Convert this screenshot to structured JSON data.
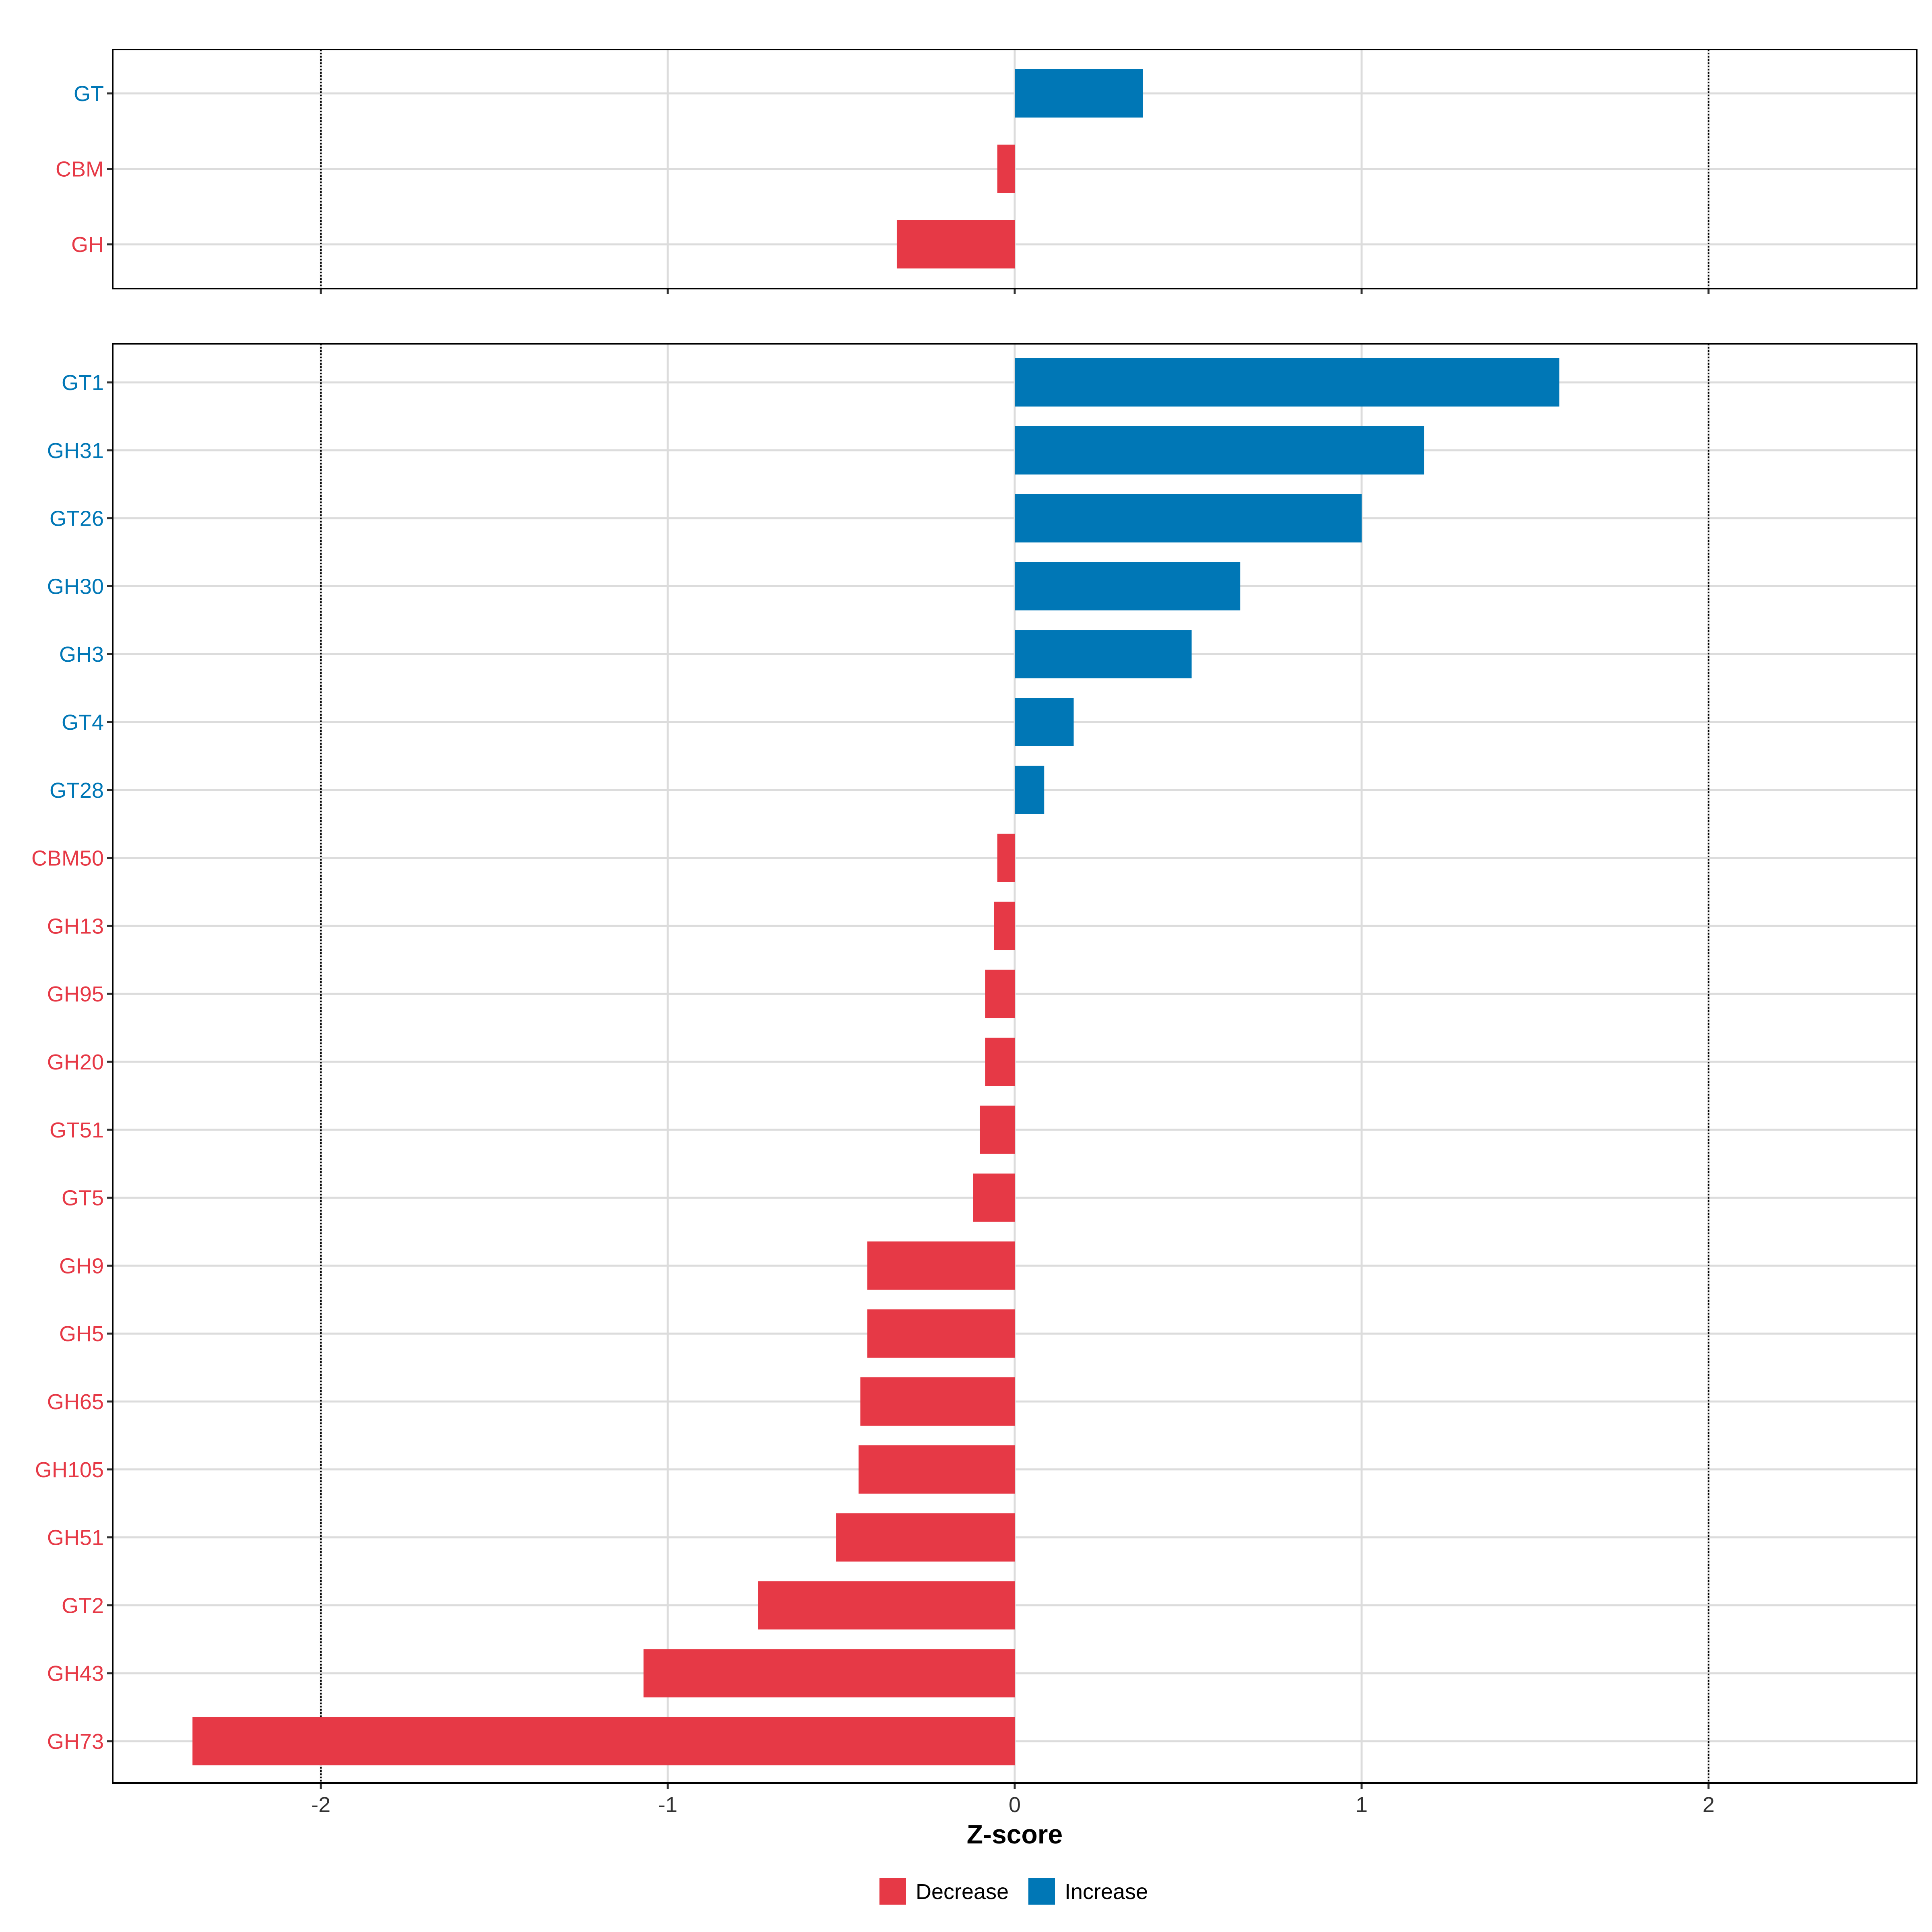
{
  "chart_data": {
    "type": "bar",
    "orientation": "horizontal",
    "xlabel": "Z-score",
    "xlim": [
      -2.6,
      2.6
    ],
    "x_ticks": [
      "-2",
      "-1",
      "0",
      "1",
      "2"
    ],
    "x_tick_values": [
      -2,
      -1,
      0,
      1,
      2
    ],
    "reference_lines": [
      -2,
      2
    ],
    "grid": true,
    "colors": {
      "Decrease": "#E63946",
      "Increase": "#0077B6"
    },
    "legend": {
      "placement": "bottom",
      "entries": [
        {
          "label": "Decrease",
          "color": "#E63946"
        },
        {
          "label": "Increase",
          "color": "#0077B6"
        }
      ]
    },
    "panels": [
      {
        "name": "family-class",
        "categories": [
          "GT",
          "CBM",
          "GH"
        ],
        "values": [
          0.37,
          -0.05,
          -0.34
        ],
        "groups": [
          "Increase",
          "Decrease",
          "Decrease"
        ]
      },
      {
        "name": "family",
        "categories": [
          "GT1",
          "GH31",
          "GT26",
          "GH30",
          "GH3",
          "GT4",
          "GT28",
          "CBM50",
          "GH13",
          "GH95",
          "GH20",
          "GT51",
          "GT5",
          "GH9",
          "GH5",
          "GH65",
          "GH105",
          "GH51",
          "GT2",
          "GH43",
          "GH73"
        ],
        "values": [
          1.57,
          1.18,
          1.0,
          0.65,
          0.51,
          0.17,
          0.085,
          -0.05,
          -0.06,
          -0.085,
          -0.085,
          -0.1,
          -0.12,
          -0.425,
          -0.425,
          -0.445,
          -0.45,
          -0.515,
          -0.74,
          -1.07,
          -2.37
        ],
        "groups": [
          "Increase",
          "Increase",
          "Increase",
          "Increase",
          "Increase",
          "Increase",
          "Increase",
          "Decrease",
          "Decrease",
          "Decrease",
          "Decrease",
          "Decrease",
          "Decrease",
          "Decrease",
          "Decrease",
          "Decrease",
          "Decrease",
          "Decrease",
          "Decrease",
          "Decrease",
          "Decrease"
        ]
      }
    ]
  }
}
